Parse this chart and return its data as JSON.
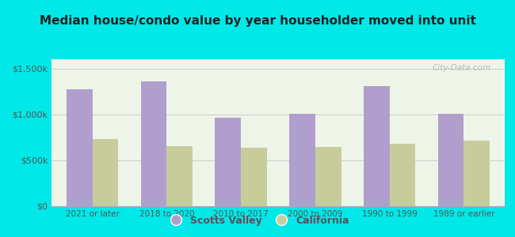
{
  "title": "Median house/condo value by year householder moved into unit",
  "categories": [
    "2021 or later",
    "2018 to 2020",
    "2010 to 2017",
    "2000 to 2009",
    "1990 to 1999",
    "1989 or earlier"
  ],
  "scotts_valley": [
    1270000,
    1360000,
    960000,
    1010000,
    1310000,
    1010000
  ],
  "california": [
    730000,
    655000,
    640000,
    645000,
    680000,
    710000
  ],
  "scotts_valley_color": "#b09fcc",
  "california_color": "#c8cc9a",
  "background_outer": "#00e8e8",
  "background_inner": "#eef5e8",
  "title_color": "#222222",
  "axis_label_color": "#555555",
  "yticks": [
    0,
    500000,
    1000000,
    1500000
  ],
  "ytick_labels": [
    "$0",
    "$500k",
    "$1,000k",
    "$1,500k"
  ],
  "ylim": [
    0,
    1600000
  ],
  "bar_width": 0.35,
  "legend_scotts_valley": "Scotts Valley",
  "legend_california": "California",
  "watermark": "City-Data.com"
}
